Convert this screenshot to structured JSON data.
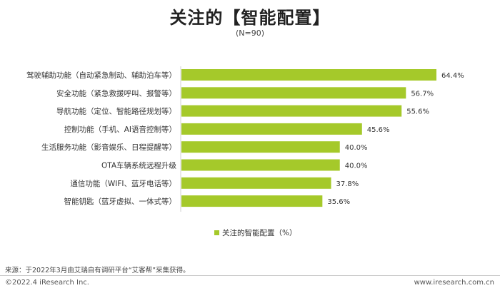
{
  "chart_data": {
    "type": "bar",
    "orientation": "horizontal",
    "title": "关注的【智能配置】",
    "subtitle": "(N=90)",
    "categories": [
      "驾驶辅助功能（自动紧急制动、辅助泊车等）",
      "安全功能（紧急救援呼叫、报警等）",
      "导航功能（定位、智能路径规划等）",
      "控制功能（手机、AI语音控制等）",
      "生活服务功能（影音娱乐、日程提醒等）",
      "OTA车辆系统远程升级",
      "通信功能（WIFI、蓝牙电话等）",
      "智能钥匙（蓝牙虚拟、一体式等）"
    ],
    "values": [
      64.4,
      56.7,
      55.6,
      45.6,
      40.0,
      40.0,
      37.8,
      35.6
    ],
    "value_labels": [
      "64.4%",
      "56.7%",
      "55.6%",
      "45.6%",
      "40.0%",
      "40.0%",
      "37.8%",
      "35.6%"
    ],
    "xlim": [
      0,
      64.4
    ],
    "bar_color": "#a5c92a",
    "legend": {
      "label": "关注的智能配置（%）",
      "position": "bottom"
    },
    "grid": false
  },
  "footer": {
    "source": "来源：于2022年3月由艾瑞自有调研平台“艾客帮”采集获得。",
    "copyright": "©2022.4 iResearch Inc.",
    "website": "www.iresearch.com.cn"
  }
}
